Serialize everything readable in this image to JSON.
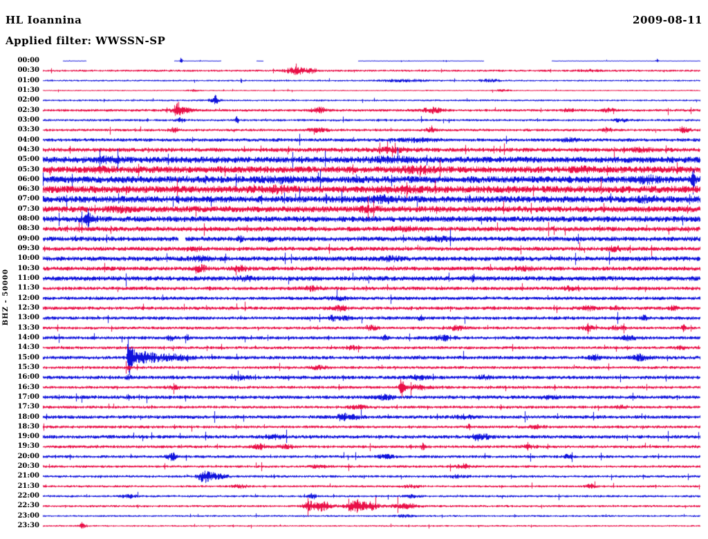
{
  "header": {
    "station": "HL Ioannina",
    "date": "2009-08-11",
    "filter_label": "Applied filter: WWSSN-SP"
  },
  "axis": {
    "y_label": "BHZ - 50000"
  },
  "colors": {
    "trace_blue": "#0f12dc",
    "trace_red": "#e90f47",
    "text": "#000000",
    "background": "#ffffff"
  },
  "chart_data": {
    "type": "helicorder-seismogram",
    "station": "HL Ioannina",
    "channel_scale_label": "BHZ - 50000",
    "date": "2009-08-11",
    "filter": "WWSSN-SP",
    "num_rows": 48,
    "row_interval_minutes": 30,
    "first_row_label": "00:00",
    "last_row_label": "23:30",
    "color_scheme": "alternating blue/red traces per half-hour",
    "events_format": "[position_fraction_along_row, amplitude_px, gaussian_width_px]",
    "rows": [
      {
        "label": "00:00",
        "color": "blue",
        "base_amp": 0.5,
        "segments": [
          [
            0.03,
            0.065
          ],
          [
            0.2,
            0.27
          ],
          [
            0.325,
            0.335
          ],
          [
            0.48,
            0.67
          ],
          [
            0.775,
            1.0
          ]
        ],
        "events": [
          [
            0.21,
            4,
            1.5
          ],
          [
            0.935,
            3,
            1.5
          ]
        ]
      },
      {
        "label": "00:30",
        "color": "red",
        "base_amp": 1.5,
        "events": [
          [
            0.385,
            5,
            10
          ],
          [
            0.41,
            3,
            5
          ],
          [
            0.83,
            1.5,
            10
          ]
        ]
      },
      {
        "label": "01:00",
        "color": "blue",
        "base_amp": 1.2,
        "events": [
          [
            0.55,
            1.5,
            25
          ],
          [
            0.68,
            1.5,
            12
          ]
        ]
      },
      {
        "label": "01:30",
        "color": "red",
        "base_amp": 0.9,
        "events": [
          [
            0.23,
            1,
            6
          ],
          [
            0.7,
            1.2,
            8
          ]
        ]
      },
      {
        "label": "02:00",
        "color": "blue",
        "base_amp": 1.3,
        "events": [
          [
            0.263,
            8,
            1.5
          ],
          [
            0.26,
            2,
            8
          ]
        ]
      },
      {
        "label": "02:30",
        "color": "red",
        "base_amp": 1.9,
        "events": [
          [
            0.205,
            7,
            4
          ],
          [
            0.21,
            4,
            10
          ],
          [
            0.42,
            3.5,
            8
          ],
          [
            0.593,
            3.5,
            10
          ],
          [
            0.8,
            2,
            6
          ],
          [
            0.86,
            2.5,
            6
          ]
        ]
      },
      {
        "label": "03:00",
        "color": "blue",
        "base_amp": 1.6,
        "events": [
          [
            0.21,
            3,
            4
          ],
          [
            0.295,
            5,
            1.8
          ],
          [
            0.88,
            2,
            8
          ]
        ]
      },
      {
        "label": "03:30",
        "color": "red",
        "base_amp": 1.9,
        "events": [
          [
            0.2,
            3,
            5
          ],
          [
            0.42,
            2.5,
            10
          ],
          [
            0.59,
            2.5,
            6
          ],
          [
            0.86,
            2,
            6
          ],
          [
            0.975,
            4,
            6
          ]
        ]
      },
      {
        "label": "04:00",
        "color": "blue",
        "base_amp": 2.4,
        "events": [
          [
            0.57,
            2,
            20
          ],
          [
            0.8,
            2,
            10
          ]
        ]
      },
      {
        "label": "04:30",
        "color": "red",
        "base_amp": 3.0,
        "events": [
          [
            0.53,
            2.5,
            20
          ],
          [
            0.91,
            2,
            10
          ]
        ]
      },
      {
        "label": "05:00",
        "color": "blue",
        "base_amp": 4.6,
        "events": [
          [
            0.1,
            2,
            15
          ],
          [
            0.53,
            2,
            20
          ]
        ]
      },
      {
        "label": "05:30",
        "color": "red",
        "base_amp": 4.8,
        "events": [
          [
            0.09,
            2,
            10
          ],
          [
            0.57,
            2.5,
            15
          ],
          [
            0.82,
            2,
            10
          ]
        ]
      },
      {
        "label": "06:00",
        "color": "blue",
        "base_amp": 5.0,
        "events": [
          [
            0.36,
            2,
            15
          ],
          [
            0.92,
            3,
            10
          ],
          [
            0.99,
            20,
            1.5
          ]
        ]
      },
      {
        "label": "06:30",
        "color": "red",
        "base_amp": 5.2,
        "events": [
          [
            0.36,
            2.5,
            12
          ],
          [
            0.55,
            2,
            15
          ]
        ]
      },
      {
        "label": "07:00",
        "color": "blue",
        "base_amp": 4.8,
        "events": [
          [
            0.52,
            2.5,
            15
          ],
          [
            0.92,
            2.5,
            10
          ]
        ]
      },
      {
        "label": "07:30",
        "color": "red",
        "base_amp": 4.4,
        "events": [
          [
            0.12,
            2,
            10
          ],
          [
            0.5,
            2,
            12
          ]
        ]
      },
      {
        "label": "08:00",
        "color": "blue",
        "base_amp": 4.2,
        "events": [
          [
            0.068,
            9,
            1.8
          ],
          [
            0.07,
            3,
            8
          ]
        ]
      },
      {
        "label": "08:30",
        "color": "red",
        "base_amp": 3.4,
        "events": [
          [
            0.55,
            2,
            15
          ]
        ]
      },
      {
        "label": "09:00",
        "color": "blue",
        "base_amp": 3.4,
        "segments": [
          [
            0,
            0.205
          ],
          [
            0.217,
            1
          ]
        ],
        "events": [
          [
            0.3,
            2.5,
            3
          ],
          [
            0.345,
            2.5,
            3
          ],
          [
            0.6,
            2,
            15
          ]
        ]
      },
      {
        "label": "09:30",
        "color": "red",
        "base_amp": 3.0,
        "events": [
          [
            0.23,
            2,
            10
          ],
          [
            0.87,
            2.5,
            8
          ]
        ]
      },
      {
        "label": "10:00",
        "color": "blue",
        "base_amp": 3.4,
        "events": [
          [
            0.24,
            2.5,
            10
          ],
          [
            0.53,
            2,
            12
          ]
        ]
      },
      {
        "label": "10:30",
        "color": "red",
        "base_amp": 3.0,
        "events": [
          [
            0.24,
            4,
            6
          ],
          [
            0.3,
            3,
            8
          ],
          [
            0.73,
            2,
            10
          ]
        ]
      },
      {
        "label": "11:00",
        "color": "blue",
        "base_amp": 3.4,
        "events": [
          [
            0.31,
            2,
            10
          ],
          [
            0.655,
            3,
            2.5
          ]
        ]
      },
      {
        "label": "11:30",
        "color": "red",
        "base_amp": 2.6,
        "events": [
          [
            0.41,
            2.5,
            10
          ],
          [
            0.8,
            2,
            8
          ]
        ]
      },
      {
        "label": "12:00",
        "color": "blue",
        "base_amp": 2.5,
        "events": [
          [
            0.45,
            2,
            10
          ]
        ]
      },
      {
        "label": "12:30",
        "color": "red",
        "base_amp": 2.5,
        "events": [
          [
            0.45,
            3,
            8
          ],
          [
            0.83,
            2.5,
            6
          ],
          [
            0.87,
            2,
            6
          ],
          [
            0.96,
            3,
            4
          ]
        ]
      },
      {
        "label": "13:00",
        "color": "blue",
        "base_amp": 2.5,
        "events": [
          [
            0.44,
            3.5,
            2.5
          ],
          [
            0.46,
            2,
            8
          ],
          [
            0.575,
            3,
            2.5
          ],
          [
            0.915,
            4,
            2
          ]
        ]
      },
      {
        "label": "13:30",
        "color": "red",
        "base_amp": 2.1,
        "events": [
          [
            0.5,
            3,
            6
          ],
          [
            0.63,
            3,
            8
          ],
          [
            0.83,
            3.5,
            6
          ],
          [
            0.875,
            2.5,
            8
          ],
          [
            0.975,
            4,
            2.5
          ]
        ]
      },
      {
        "label": "14:00",
        "color": "blue",
        "base_amp": 2.4,
        "events": [
          [
            0.195,
            3,
            4
          ],
          [
            0.22,
            3.5,
            2
          ],
          [
            0.52,
            3,
            2.5
          ],
          [
            0.61,
            3,
            10
          ],
          [
            0.89,
            2.5,
            8
          ]
        ]
      },
      {
        "label": "14:30",
        "color": "red",
        "base_amp": 2.1,
        "events": [
          [
            0.47,
            2,
            8
          ],
          [
            0.97,
            2,
            6
          ]
        ]
      },
      {
        "label": "15:00",
        "color": "blue",
        "base_amp": 2.6,
        "events": [
          [
            0.13,
            38,
            1.2
          ],
          [
            0.135,
            14,
            3.5
          ],
          [
            0.155,
            7,
            9
          ],
          [
            0.19,
            4,
            22
          ],
          [
            0.84,
            3,
            6
          ],
          [
            0.91,
            4,
            8
          ]
        ]
      },
      {
        "label": "15:30",
        "color": "red",
        "base_amp": 2.1,
        "events": [
          [
            0.13,
            3,
            2.5
          ],
          [
            0.42,
            2,
            8
          ]
        ]
      },
      {
        "label": "16:00",
        "color": "blue",
        "base_amp": 2.6,
        "events": [
          [
            0.13,
            2.5,
            2
          ],
          [
            0.3,
            2,
            10
          ],
          [
            0.57,
            2.5,
            8
          ],
          [
            0.67,
            2,
            8
          ]
        ]
      },
      {
        "label": "16:30",
        "color": "red",
        "base_amp": 2.1,
        "events": [
          [
            0.2,
            2,
            8
          ],
          [
            0.545,
            12,
            1.5
          ],
          [
            0.548,
            6,
            4
          ],
          [
            0.57,
            3,
            12
          ]
        ]
      },
      {
        "label": "17:00",
        "color": "blue",
        "base_amp": 2.6,
        "events": [
          [
            0.13,
            2.5,
            2
          ],
          [
            0.52,
            2.5,
            10
          ],
          [
            0.77,
            2,
            8
          ]
        ]
      },
      {
        "label": "17:30",
        "color": "red",
        "base_amp": 2.1,
        "events": [
          [
            0.48,
            2,
            10
          ],
          [
            0.88,
            2,
            6
          ]
        ]
      },
      {
        "label": "18:00",
        "color": "blue",
        "base_amp": 2.5,
        "events": [
          [
            0.455,
            5,
            4
          ],
          [
            0.47,
            3,
            8
          ],
          [
            0.64,
            2.5,
            8
          ]
        ]
      },
      {
        "label": "18:30",
        "color": "red",
        "base_amp": 2.1,
        "events": [
          [
            0.648,
            3.5,
            2
          ],
          [
            0.75,
            2,
            8
          ]
        ]
      },
      {
        "label": "19:00",
        "color": "blue",
        "base_amp": 2.5,
        "events": [
          [
            0.35,
            2.5,
            10
          ],
          [
            0.66,
            4,
            3.5
          ],
          [
            0.67,
            2.5,
            10
          ]
        ]
      },
      {
        "label": "19:30",
        "color": "red",
        "base_amp": 2.1,
        "events": [
          [
            0.33,
            3,
            8
          ],
          [
            0.37,
            2.5,
            8
          ],
          [
            0.579,
            5,
            2
          ],
          [
            0.74,
            2,
            8
          ]
        ]
      },
      {
        "label": "20:00",
        "color": "blue",
        "base_amp": 2.0,
        "events": [
          [
            0.196,
            5,
            5
          ],
          [
            0.52,
            2,
            10
          ],
          [
            0.8,
            2.5,
            6
          ]
        ]
      },
      {
        "label": "20:30",
        "color": "red",
        "base_amp": 1.8,
        "events": [
          [
            0.42,
            2,
            8
          ],
          [
            0.64,
            3,
            8
          ]
        ]
      },
      {
        "label": "21:00",
        "color": "blue",
        "base_amp": 1.8,
        "events": [
          [
            0.245,
            6,
            6
          ],
          [
            0.26,
            4,
            12
          ],
          [
            0.63,
            2,
            10
          ]
        ]
      },
      {
        "label": "21:30",
        "color": "red",
        "base_amp": 1.6,
        "events": [
          [
            0.3,
            2,
            8
          ],
          [
            0.56,
            1.5,
            10
          ],
          [
            0.835,
            3,
            5
          ]
        ]
      },
      {
        "label": "22:00",
        "color": "blue",
        "base_amp": 1.6,
        "events": [
          [
            0.13,
            2,
            8
          ],
          [
            0.41,
            3.5,
            4
          ],
          [
            0.56,
            2,
            8
          ]
        ]
      },
      {
        "label": "22:30",
        "color": "red",
        "base_amp": 1.6,
        "events": [
          [
            0.405,
            5,
            6
          ],
          [
            0.425,
            7,
            10
          ],
          [
            0.475,
            9,
            9
          ],
          [
            0.5,
            5,
            8
          ],
          [
            0.55,
            3,
            15
          ]
        ]
      },
      {
        "label": "23:00",
        "color": "blue",
        "base_amp": 1.3,
        "events": [
          [
            0.55,
            1.5,
            10
          ]
        ]
      },
      {
        "label": "23:30",
        "color": "red",
        "base_amp": 1.2,
        "events": [
          [
            0.059,
            5,
            1.5
          ],
          [
            0.06,
            2,
            5
          ]
        ]
      }
    ]
  }
}
